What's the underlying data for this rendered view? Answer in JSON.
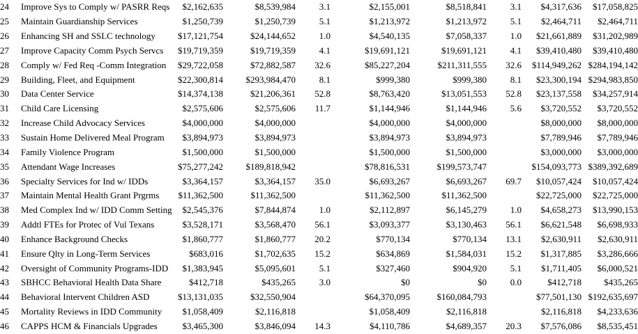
{
  "colors": {
    "text": "#000000",
    "background": "#ffffff"
  },
  "table": {
    "rows": [
      {
        "num": "24",
        "name": "Improve Sys to Comply w/ PASRR Reqs",
        "cols": [
          "$2,162,635",
          "$8,539,984",
          "3.1",
          "$2,155,001",
          "$8,518,841",
          "3.1",
          "$4,317,636",
          "$17,058,825"
        ]
      },
      {
        "num": "25",
        "name": "Maintain Guardianship Services",
        "cols": [
          "$1,250,739",
          "$1,250,739",
          "5.1",
          "$1,213,972",
          "$1,213,972",
          "5.1",
          "$2,464,711",
          "$2,464,711"
        ]
      },
      {
        "num": "26",
        "name": "Enhancing SH and SSLC technology",
        "cols": [
          "$17,121,754",
          "$24,144,652",
          "1.0",
          "$4,540,135",
          "$7,058,337",
          "1.0",
          "$21,661,889",
          "$31,202,989"
        ]
      },
      {
        "num": "27",
        "name": "Improve Capacity Comm Psych Servcs",
        "cols": [
          "$19,719,359",
          "$19,719,359",
          "4.1",
          "$19,691,121",
          "$19,691,121",
          "4.1",
          "$39,410,480",
          "$39,410,480"
        ]
      },
      {
        "num": "28",
        "name": "Comply w/ Fed Req -Comm Integration",
        "cols": [
          "$29,722,058",
          "$72,882,587",
          "32.6",
          "$85,227,204",
          "$211,311,555",
          "32.6",
          "$114,949,262",
          "$284,194,142"
        ]
      },
      {
        "num": "29",
        "name": "Building, Fleet, and Equipment",
        "cols": [
          "$22,300,814",
          "$293,984,470",
          "8.1",
          "$999,380",
          "$999,380",
          "8.1",
          "$23,300,194",
          "$294,983,850"
        ]
      },
      {
        "num": "30",
        "name": "Data Center Service",
        "cols": [
          "$14,374,138",
          "$21,206,361",
          "52.8",
          "$8,763,420",
          "$13,051,553",
          "52.8",
          "$23,137,558",
          "$34,257,914"
        ]
      },
      {
        "num": "31",
        "name": "Child Care Licensing",
        "cols": [
          "$2,575,606",
          "$2,575,606",
          "11.7",
          "$1,144,946",
          "$1,144,946",
          "5.6",
          "$3,720,552",
          "$3,720,552"
        ]
      },
      {
        "num": "32",
        "name": "Increase Child Advocacy Services",
        "cols": [
          "$4,000,000",
          "$4,000,000",
          "",
          "$4,000,000",
          "$4,000,000",
          "",
          "$8,000,000",
          "$8,000,000"
        ]
      },
      {
        "num": "33",
        "name": "Sustain Home Delivered Meal Program",
        "cols": [
          "$3,894,973",
          "$3,894,973",
          "",
          "$3,894,973",
          "$3,894,973",
          "",
          "$7,789,946",
          "$7,789,946"
        ]
      },
      {
        "num": "34",
        "name": "Family Violence Program",
        "cols": [
          "$1,500,000",
          "$1,500,000",
          "",
          "$1,500,000",
          "$1,500,000",
          "",
          "$3,000,000",
          "$3,000,000"
        ]
      },
      {
        "num": "35",
        "name": "Attendant Wage Increases",
        "cols": [
          "$75,277,242",
          "$189,818,942",
          "",
          "$78,816,531",
          "$199,573,747",
          "",
          "$154,093,773",
          "$389,392,689"
        ]
      },
      {
        "num": "36",
        "name": "Specialty Services for Ind w/ IDDs",
        "cols": [
          "$3,364,157",
          "$3,364,157",
          "35.0",
          "$6,693,267",
          "$6,693,267",
          "69.7",
          "$10,057,424",
          "$10,057,424"
        ]
      },
      {
        "num": "37",
        "name": "Maintain Mental Health Grant Prgrms",
        "cols": [
          "$11,362,500",
          "$11,362,500",
          "",
          "$11,362,500",
          "$11,362,500",
          "",
          "$22,725,000",
          "$22,725,000"
        ]
      },
      {
        "num": "38",
        "name": "Med Complex Ind w/ IDD Comm Setting",
        "cols": [
          "$2,545,376",
          "$7,844,874",
          "1.0",
          "$2,112,897",
          "$6,145,279",
          "1.0",
          "$4,658,273",
          "$13,990,153"
        ]
      },
      {
        "num": "39",
        "name": "Addtl FTEs for Protec of Vul Texans",
        "cols": [
          "$3,528,171",
          "$3,568,470",
          "56.1",
          "$3,093,377",
          "$3,130,463",
          "56.1",
          "$6,621,548",
          "$6,698,933"
        ]
      },
      {
        "num": "40",
        "name": "Enhance Background Checks",
        "cols": [
          "$1,860,777",
          "$1,860,777",
          "20.2",
          "$770,134",
          "$770,134",
          "13.1",
          "$2,630,911",
          "$2,630,911"
        ]
      },
      {
        "num": "41",
        "name": "Ensure Qlty in Long-Term Services",
        "cols": [
          "$683,016",
          "$1,702,635",
          "15.2",
          "$634,869",
          "$1,584,031",
          "15.2",
          "$1,317,885",
          "$3,286,666"
        ]
      },
      {
        "num": "42",
        "name": "Oversight of Community Programs-IDD",
        "cols": [
          "$1,383,945",
          "$5,095,601",
          "5.1",
          "$327,460",
          "$904,920",
          "5.1",
          "$1,711,405",
          "$6,000,521"
        ]
      },
      {
        "num": "43",
        "name": "SBHCC Behavioral Health Data Share",
        "cols": [
          "$412,718",
          "$435,265",
          "3.0",
          "$0",
          "$0",
          "0.0",
          "$412,718",
          "$435,265"
        ]
      },
      {
        "num": "44",
        "name": "Behavioral Intervent Children ASD",
        "cols": [
          "$13,131,035",
          "$32,550,904",
          "",
          "$64,370,095",
          "$160,084,793",
          "",
          "$77,501,130",
          "$192,635,697"
        ]
      },
      {
        "num": "45",
        "name": "Mortality Reviews in IDD Community",
        "cols": [
          "$1,058,409",
          "$2,116,818",
          "",
          "$1,058,409",
          "$2,116,818",
          "",
          "$2,116,818",
          "$4,233,636"
        ]
      },
      {
        "num": "46",
        "name": "CAPPS HCM & Financials Upgrades",
        "cols": [
          "$3,465,300",
          "$3,846,094",
          "14.3",
          "$4,110,786",
          "$4,689,357",
          "20.3",
          "$7,576,086",
          "$8,535,451"
        ]
      }
    ]
  }
}
